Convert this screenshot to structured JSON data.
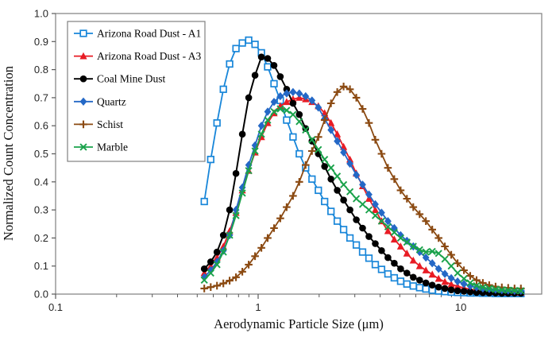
{
  "chart_data": {
    "type": "line",
    "title": "",
    "xlabel": "Aerodynamic Particle Size (μm)",
    "ylabel": "Normalized Count Concentration",
    "x_scale": "log",
    "xlim": [
      0.1,
      25.1
    ],
    "ylim": [
      0.0,
      1.0
    ],
    "grid": false,
    "legend_position": "upper-left",
    "y_ticks": [
      0.0,
      0.1,
      0.2,
      0.3,
      0.4,
      0.5,
      0.6,
      0.7,
      0.8,
      0.9,
      1.0
    ],
    "x_ticks_major": [
      0.1,
      1,
      10
    ],
    "x_tick_labels": [
      "0.1",
      "1",
      "10"
    ],
    "x_ticks_minor": [
      0.2,
      0.3,
      0.4,
      0.5,
      0.6,
      0.7,
      0.8,
      0.9,
      2,
      3,
      4,
      5,
      6,
      7,
      8,
      9,
      20
    ],
    "axis_color": "#7f7f7f",
    "x": [
      0.542,
      0.583,
      0.626,
      0.673,
      0.723,
      0.777,
      0.835,
      0.898,
      0.965,
      1.037,
      1.114,
      1.197,
      1.286,
      1.382,
      1.486,
      1.596,
      1.715,
      1.843,
      1.981,
      2.129,
      2.288,
      2.458,
      2.642,
      2.839,
      3.051,
      3.278,
      3.523,
      3.786,
      4.068,
      4.371,
      4.698,
      5.048,
      5.425,
      5.829,
      6.264,
      6.732,
      7.234,
      7.774,
      8.354,
      8.977,
      9.647,
      10.37,
      11.14,
      11.97,
      12.86,
      13.82,
      14.86,
      15.96,
      17.15,
      18.43,
      19.81
    ],
    "series": [
      {
        "name": "Arizona Road Dust - A1",
        "color": "#1886d9",
        "marker": "open-square",
        "values": [
          0.33,
          0.48,
          0.61,
          0.73,
          0.82,
          0.875,
          0.895,
          0.905,
          0.89,
          0.86,
          0.81,
          0.75,
          0.69,
          0.62,
          0.56,
          0.5,
          0.45,
          0.41,
          0.37,
          0.33,
          0.295,
          0.26,
          0.23,
          0.2,
          0.175,
          0.15,
          0.128,
          0.105,
          0.088,
          0.072,
          0.058,
          0.046,
          0.036,
          0.029,
          0.023,
          0.018,
          0.014,
          0.011,
          0.009,
          0.007,
          0.006,
          0.005,
          0.004,
          0.004,
          0.003,
          0.003,
          0.002,
          0.002,
          0.002,
          0.002,
          0.002
        ]
      },
      {
        "name": "Arizona Road Dust - A3",
        "color": "#e81c24",
        "marker": "triangle",
        "values": [
          0.075,
          0.1,
          0.13,
          0.17,
          0.225,
          0.29,
          0.37,
          0.44,
          0.505,
          0.56,
          0.61,
          0.645,
          0.67,
          0.685,
          0.695,
          0.7,
          0.695,
          0.685,
          0.67,
          0.645,
          0.61,
          0.57,
          0.525,
          0.48,
          0.43,
          0.385,
          0.34,
          0.3,
          0.26,
          0.225,
          0.195,
          0.17,
          0.145,
          0.12,
          0.1,
          0.085,
          0.07,
          0.055,
          0.044,
          0.035,
          0.028,
          0.022,
          0.017,
          0.014,
          0.011,
          0.009,
          0.008,
          0.007,
          0.006,
          0.006,
          0.005
        ]
      },
      {
        "name": "Coal Mine Dust",
        "color": "#000000",
        "marker": "circle",
        "values": [
          0.09,
          0.115,
          0.15,
          0.21,
          0.3,
          0.43,
          0.57,
          0.7,
          0.78,
          0.845,
          0.84,
          0.815,
          0.775,
          0.73,
          0.68,
          0.64,
          0.59,
          0.545,
          0.5,
          0.455,
          0.41,
          0.37,
          0.335,
          0.3,
          0.265,
          0.235,
          0.205,
          0.18,
          0.155,
          0.13,
          0.11,
          0.09,
          0.075,
          0.06,
          0.05,
          0.04,
          0.032,
          0.025,
          0.02,
          0.015,
          0.012,
          0.01,
          0.008,
          0.006,
          0.005,
          0.004,
          0.004,
          0.003,
          0.003,
          0.003,
          0.003
        ]
      },
      {
        "name": "Quartz",
        "color": "#2468c6",
        "marker": "diamond",
        "values": [
          0.06,
          0.085,
          0.115,
          0.155,
          0.21,
          0.3,
          0.38,
          0.46,
          0.53,
          0.6,
          0.65,
          0.685,
          0.705,
          0.715,
          0.72,
          0.715,
          0.705,
          0.69,
          0.665,
          0.625,
          0.585,
          0.545,
          0.505,
          0.465,
          0.425,
          0.39,
          0.355,
          0.32,
          0.29,
          0.26,
          0.235,
          0.21,
          0.19,
          0.17,
          0.15,
          0.13,
          0.11,
          0.09,
          0.072,
          0.057,
          0.045,
          0.036,
          0.029,
          0.024,
          0.02,
          0.018,
          0.016,
          0.014,
          0.013,
          0.012,
          0.012
        ]
      },
      {
        "name": "Schist",
        "color": "#8b4a12",
        "marker": "plus",
        "values": [
          0.02,
          0.025,
          0.03,
          0.038,
          0.048,
          0.06,
          0.08,
          0.105,
          0.135,
          0.165,
          0.2,
          0.235,
          0.27,
          0.31,
          0.35,
          0.4,
          0.46,
          0.51,
          0.56,
          0.62,
          0.68,
          0.72,
          0.74,
          0.73,
          0.7,
          0.66,
          0.61,
          0.55,
          0.5,
          0.45,
          0.41,
          0.37,
          0.34,
          0.31,
          0.285,
          0.26,
          0.23,
          0.2,
          0.17,
          0.14,
          0.11,
          0.085,
          0.065,
          0.05,
          0.04,
          0.032,
          0.027,
          0.024,
          0.022,
          0.02,
          0.02
        ]
      },
      {
        "name": "Marble",
        "color": "#1aa24b",
        "marker": "x",
        "values": [
          0.05,
          0.075,
          0.105,
          0.15,
          0.21,
          0.28,
          0.36,
          0.44,
          0.51,
          0.57,
          0.62,
          0.65,
          0.66,
          0.655,
          0.64,
          0.615,
          0.585,
          0.55,
          0.515,
          0.48,
          0.45,
          0.42,
          0.39,
          0.365,
          0.34,
          0.32,
          0.3,
          0.28,
          0.26,
          0.24,
          0.22,
          0.2,
          0.185,
          0.17,
          0.158,
          0.15,
          0.152,
          0.145,
          0.125,
          0.1,
          0.075,
          0.055,
          0.04,
          0.03,
          0.024,
          0.02,
          0.017,
          0.015,
          0.014,
          0.013,
          0.012
        ]
      }
    ]
  }
}
